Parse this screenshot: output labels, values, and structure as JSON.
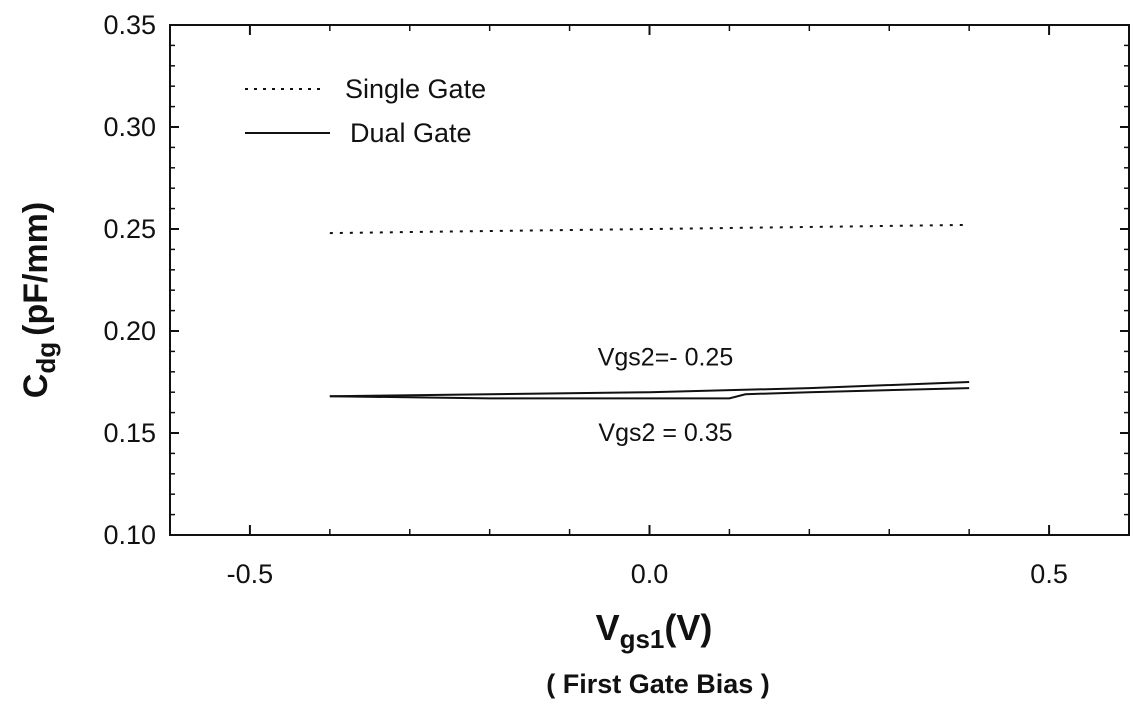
{
  "chart_data": {
    "type": "line",
    "xlim": [
      -0.6,
      0.6
    ],
    "ylim": [
      0.1,
      0.35
    ],
    "x_ticks": [
      {
        "value": -0.5,
        "label": "-0.5"
      },
      {
        "value": 0.0,
        "label": "0.0"
      },
      {
        "value": 0.5,
        "label": "0.5"
      }
    ],
    "y_ticks": [
      {
        "value": 0.1,
        "label": "0.10"
      },
      {
        "value": 0.15,
        "label": "0.15"
      },
      {
        "value": 0.2,
        "label": "0.20"
      },
      {
        "value": 0.25,
        "label": "0.25"
      },
      {
        "value": 0.3,
        "label": "0.30"
      },
      {
        "value": 0.35,
        "label": "0.35"
      }
    ],
    "xlabel": {
      "main": "V",
      "sub": "gs1",
      "unit": "(V)"
    },
    "xlabel_note": "( First Gate Bias )",
    "ylabel": {
      "main": "C",
      "sub": "dg",
      "unit": "(pF/mm)"
    },
    "legend": {
      "placement": "top-left",
      "entries": [
        {
          "label": "Single Gate",
          "style": "dotted"
        },
        {
          "label": "Dual Gate",
          "style": "solid"
        }
      ]
    },
    "series": [
      {
        "legend": "Single Gate",
        "style": "dotted",
        "x": [
          -0.4,
          -0.2,
          0.0,
          0.2,
          0.4
        ],
        "y": [
          0.248,
          0.249,
          0.25,
          0.251,
          0.252
        ]
      },
      {
        "legend": "Dual Gate",
        "style": "solid",
        "x": [
          -0.4,
          -0.2,
          0.0,
          0.2,
          0.4
        ],
        "y": [
          0.168,
          0.169,
          0.17,
          0.172,
          0.175
        ]
      },
      {
        "legend": "Dual Gate",
        "style": "solid",
        "x": [
          -0.4,
          -0.2,
          0.0,
          0.1,
          0.12,
          0.2,
          0.4
        ],
        "y": [
          0.168,
          0.167,
          0.167,
          0.167,
          0.169,
          0.17,
          0.172
        ]
      }
    ],
    "annotations": [
      {
        "text": "Vgs2=- 0.25",
        "x": 0.02,
        "y": 0.183
      },
      {
        "text": "Vgs2 = 0.35",
        "x": 0.02,
        "y": 0.146
      }
    ],
    "grid": false
  }
}
